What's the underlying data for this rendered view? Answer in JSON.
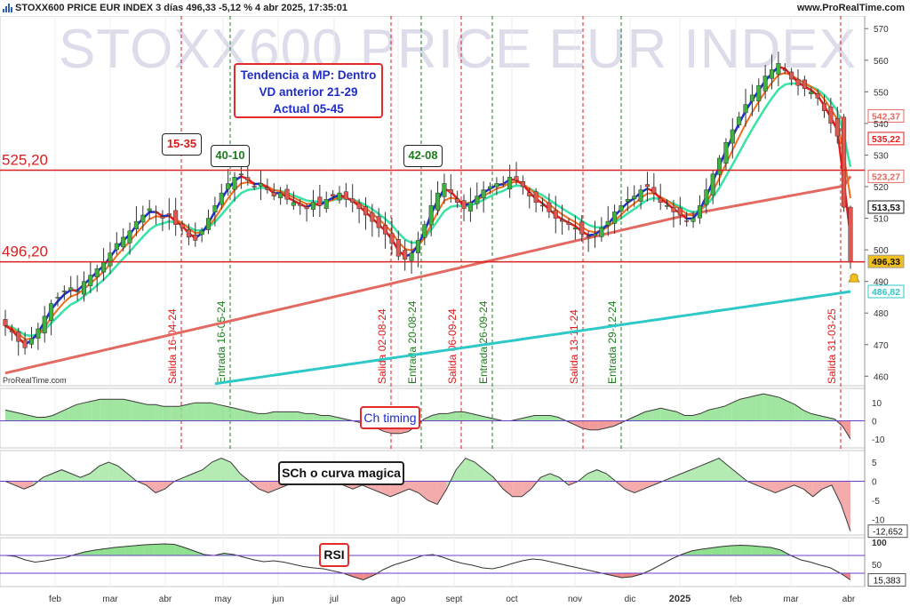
{
  "header": {
    "title": "STOXX600 PRICE EUR INDEX 3 días 496,33 -5,12 % 4 abr 2025, 17:35:01",
    "brand": "www.ProRealTime.com",
    "watermark": "STOXX600 PRICE EUR INDEX",
    "footer_brand": "ProRealTime.com"
  },
  "annotations": {
    "main_line1": "Tendencia a MP: Dentro",
    "main_line2": "VD anterior 21-29",
    "main_line3": "Actual 05-45",
    "red_box": "15-35",
    "green_box1": "40-10",
    "green_box2": "42-08",
    "ch_timing": "Ch timing",
    "sch": "SCh o curva magica",
    "rsi": "RSI"
  },
  "colors": {
    "up_candle": "#3fb33f",
    "down_candle": "#e0574f",
    "fast_ma_up": "#1c2fd0",
    "fast_ma_down": "#e81b1b",
    "ma_green": "#38e3a4",
    "ma_orange": "#f26c1c",
    "ma_salmon": "#e26a62",
    "ma_cyan": "#2fc8c8",
    "level_line": "#d92020"
  },
  "chart_data": [
    {
      "type": "candlestick",
      "title": "STOXX600 PRICE EUR INDEX",
      "ylim": [
        457,
        574
      ],
      "yticks": [
        460,
        470,
        480,
        490,
        500,
        510,
        520,
        530,
        540,
        550,
        560,
        570
      ],
      "xlabels": [
        "feb",
        "mar",
        "abr",
        "may",
        "jun",
        "jul",
        "ago",
        "sept",
        "oct",
        "nov",
        "dic",
        "2025",
        "feb",
        "mar",
        "abr"
      ],
      "levels": [
        {
          "label": "525,20",
          "value": 525.2
        },
        {
          "label": "496,20",
          "value": 496.2
        }
      ],
      "price_labels": [
        {
          "text": "542,37",
          "value": 542.37,
          "color": "#e26a62",
          "style": "outline"
        },
        {
          "text": "535,22",
          "value": 535.22,
          "color": "#e81b1b",
          "style": "outline"
        },
        {
          "text": "523,27",
          "value": 523.27,
          "color": "#e26a62",
          "style": "outline"
        },
        {
          "text": "513,53",
          "value": 513.53,
          "color": "#222222",
          "style": "outline"
        },
        {
          "text": "496,33",
          "value": 496.33,
          "color": "#f2c01c",
          "style": "fill"
        },
        {
          "text": "486,82",
          "value": 486.82,
          "color": "#2fc8c8",
          "style": "outline"
        }
      ],
      "signals": [
        {
          "kind": "Salida",
          "date": "16-04-24",
          "color": "#e01919"
        },
        {
          "kind": "Entrada",
          "date": "16-05-24",
          "color": "#1c7d1c"
        },
        {
          "kind": "Salida",
          "date": "02-08-24",
          "color": "#e01919"
        },
        {
          "kind": "Entrada",
          "date": "20-08-24",
          "color": "#1c7d1c"
        },
        {
          "kind": "Salida",
          "date": "06-09-24",
          "color": "#e01919"
        },
        {
          "kind": "Entrada",
          "date": "26-09-24",
          "color": "#1c7d1c"
        },
        {
          "kind": "Salida",
          "date": "13-11-24",
          "color": "#e01919"
        },
        {
          "kind": "Entrada",
          "date": "29-12-24",
          "color": "#1c7d1c"
        },
        {
          "kind": "Salida",
          "date": "31-03-25",
          "color": "#e01919"
        }
      ],
      "close_series": [
        476,
        474,
        471,
        469,
        472,
        475,
        479,
        483,
        485,
        487,
        488,
        487,
        490,
        492,
        494,
        496,
        499,
        502,
        504,
        506,
        509,
        511,
        513,
        512,
        510,
        511,
        508,
        507,
        504,
        503,
        506,
        510,
        514,
        518,
        521,
        523,
        524,
        522,
        520,
        521,
        519,
        517,
        518,
        516,
        515,
        514,
        513,
        515,
        514,
        516,
        517,
        518,
        516,
        515,
        513,
        511,
        509,
        507,
        505,
        502,
        498,
        497,
        499,
        503,
        508,
        514,
        518,
        521,
        518,
        515,
        513,
        515,
        517,
        519,
        520,
        521,
        521,
        523,
        522,
        520,
        517,
        515,
        514,
        512,
        510,
        509,
        508,
        507,
        505,
        504,
        505,
        507,
        509,
        512,
        514,
        516,
        517,
        519,
        520,
        518,
        515,
        514,
        512,
        511,
        509,
        510,
        514,
        519,
        524,
        529,
        534,
        538,
        542,
        546,
        549,
        552,
        555,
        557,
        559,
        557,
        554,
        552,
        551,
        550,
        548,
        544,
        540,
        536,
        513,
        496
      ]
    },
    {
      "type": "area",
      "title": "Ch timing",
      "ylim": [
        -15,
        18
      ],
      "yticks": [
        10,
        0,
        -10
      ],
      "values": [
        6,
        5,
        4,
        3,
        2,
        2,
        3,
        5,
        7,
        9,
        10,
        11,
        12,
        12,
        12,
        12,
        11,
        10,
        9,
        9,
        8,
        8,
        8,
        9,
        10,
        10,
        10,
        9,
        8,
        7,
        6,
        5,
        4,
        4,
        5,
        5,
        5,
        5,
        4,
        4,
        3,
        3,
        2,
        1,
        0,
        -1,
        -2,
        -4,
        -6,
        -7,
        -7,
        -6,
        -3,
        1,
        3,
        4,
        4,
        5,
        5,
        4,
        3,
        2,
        1,
        0,
        0,
        1,
        2,
        3,
        3,
        3,
        2,
        0,
        -2,
        -4,
        -5,
        -5,
        -4,
        -3,
        -1,
        1,
        3,
        5,
        6,
        7,
        6,
        5,
        3,
        3,
        4,
        6,
        7,
        8,
        10,
        12,
        13,
        14,
        15,
        14,
        13,
        11,
        9,
        6,
        4,
        3,
        2,
        1,
        -3,
        -10
      ]
    },
    {
      "type": "area",
      "title": "SCh o curva magica",
      "ylim": [
        -14,
        8
      ],
      "yticks": [
        5,
        0,
        -5,
        -10
      ],
      "last_value": "-12,652",
      "values": [
        0,
        -1,
        -2,
        -1,
        1,
        2,
        3,
        2,
        1,
        2,
        4,
        5,
        4,
        2,
        0,
        -1,
        -3,
        -2,
        0,
        1,
        2,
        3,
        5,
        6,
        5,
        2,
        0,
        -2,
        -3,
        -2,
        -1,
        0,
        1,
        2,
        1,
        0,
        -1,
        -2,
        -1,
        -2,
        -3,
        -4,
        -3,
        -2,
        -3,
        -5,
        -6,
        -2,
        3,
        6,
        5,
        3,
        1,
        -2,
        -4,
        -4,
        -2,
        1,
        2,
        1,
        -1,
        0,
        2,
        3,
        2,
        0,
        -2,
        -3,
        -2,
        -1,
        0,
        1,
        2,
        3,
        4,
        5,
        6,
        4,
        2,
        0,
        -1,
        -2,
        -3,
        -2,
        -1,
        -2,
        -4,
        -2,
        -1,
        -6,
        -13
      ]
    },
    {
      "type": "line",
      "title": "RSI",
      "ylim": [
        0,
        110
      ],
      "yticks": [
        100,
        50
      ],
      "last_value": "15,383",
      "thresholds": [
        70,
        30
      ],
      "values": [
        70,
        68,
        60,
        55,
        58,
        62,
        65,
        72,
        78,
        82,
        85,
        88,
        90,
        92,
        94,
        95,
        96,
        95,
        88,
        80,
        72,
        70,
        75,
        72,
        66,
        60,
        56,
        58,
        55,
        50,
        45,
        42,
        40,
        35,
        30,
        22,
        15,
        25,
        38,
        48,
        55,
        62,
        70,
        72,
        66,
        58,
        52,
        48,
        42,
        40,
        45,
        52,
        58,
        62,
        60,
        55,
        50,
        45,
        40,
        35,
        30,
        25,
        20,
        22,
        28,
        38,
        50,
        62,
        72,
        80,
        84,
        87,
        90,
        92,
        93,
        92,
        90,
        88,
        82,
        70,
        60,
        55,
        48,
        42,
        30,
        15
      ]
    }
  ]
}
